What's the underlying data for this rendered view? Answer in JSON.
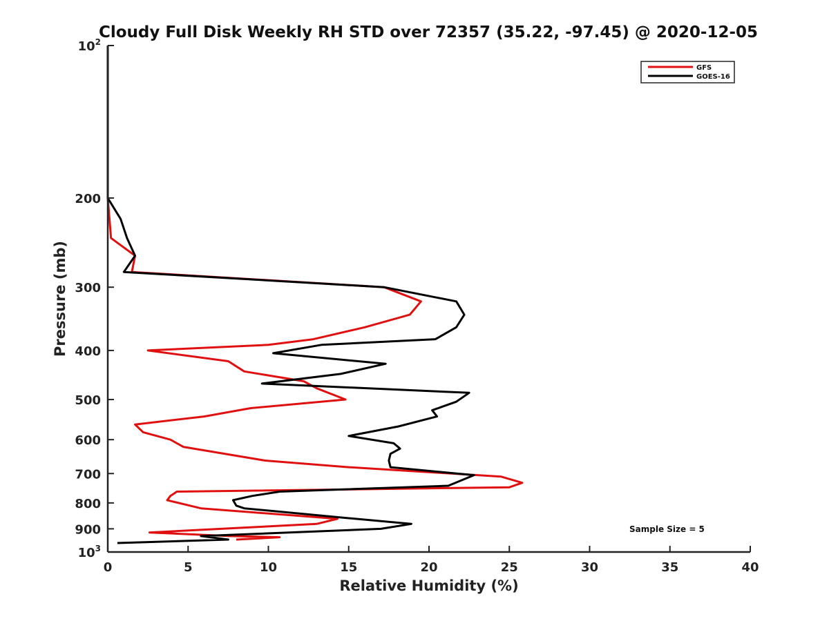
{
  "chart_data": {
    "type": "line",
    "title": "Cloudy Full Disk Weekly RH STD over 72357 (35.22, -97.45) @ 2020-12-05",
    "xlabel": "Relative Humidity (%)",
    "ylabel": "Pressure (mb)",
    "xlim": [
      0,
      40
    ],
    "ylim": [
      100,
      1000
    ],
    "yscale": "log",
    "y_reversed": true,
    "x_ticks": [
      "0",
      "5",
      "10",
      "15",
      "20",
      "25",
      "30",
      "35",
      "40"
    ],
    "y_ticks": [
      {
        "value": 100,
        "base": "10",
        "exp": "2"
      },
      {
        "value": 200,
        "label": "200"
      },
      {
        "value": 300,
        "label": "300"
      },
      {
        "value": 400,
        "label": "400"
      },
      {
        "value": 500,
        "label": "500"
      },
      {
        "value": 600,
        "label": "600"
      },
      {
        "value": 700,
        "label": "700"
      },
      {
        "value": 800,
        "label": "800"
      },
      {
        "value": 900,
        "label": "900"
      },
      {
        "value": 1000,
        "base": "10",
        "exp": "3"
      }
    ],
    "legend_position": "top-right",
    "annotation": "Sample Size = 5",
    "series": [
      {
        "name": "GFS",
        "color": "#e01010",
        "points": [
          [
            0,
            100
          ],
          [
            0,
            200
          ],
          [
            0.2,
            240
          ],
          [
            1.7,
            260
          ],
          [
            1.5,
            280
          ],
          [
            17.2,
            300
          ],
          [
            19.5,
            320
          ],
          [
            18.8,
            340
          ],
          [
            16.0,
            360
          ],
          [
            12.8,
            380
          ],
          [
            10.0,
            390
          ],
          [
            2.5,
            400
          ],
          [
            7.5,
            420
          ],
          [
            8.5,
            440
          ],
          [
            12.2,
            460
          ],
          [
            13.0,
            475
          ],
          [
            14.8,
            500
          ],
          [
            8.9,
            520
          ],
          [
            6.0,
            540
          ],
          [
            1.7,
            560
          ],
          [
            2.2,
            580
          ],
          [
            3.9,
            600
          ],
          [
            4.7,
            620
          ],
          [
            9.8,
            660
          ],
          [
            15.0,
            680
          ],
          [
            24.5,
            710
          ],
          [
            25.8,
            730
          ],
          [
            25.0,
            745
          ],
          [
            4.3,
            760
          ],
          [
            3.9,
            775
          ],
          [
            3.7,
            790
          ],
          [
            5.8,
            820
          ],
          [
            14.3,
            860
          ],
          [
            13.0,
            880
          ],
          [
            2.6,
            915
          ],
          [
            7.6,
            930
          ],
          [
            10.7,
            935
          ],
          [
            8.0,
            945
          ]
        ]
      },
      {
        "name": "GOES-16",
        "color": "#000000",
        "points": [
          [
            0,
            100
          ],
          [
            0,
            200
          ],
          [
            0.8,
            220
          ],
          [
            1.2,
            240
          ],
          [
            1.7,
            260
          ],
          [
            1.0,
            280
          ],
          [
            17.2,
            300
          ],
          [
            21.7,
            320
          ],
          [
            22.2,
            340
          ],
          [
            21.7,
            360
          ],
          [
            20.4,
            380
          ],
          [
            13.3,
            390
          ],
          [
            10.3,
            405
          ],
          [
            17.3,
            425
          ],
          [
            14.5,
            445
          ],
          [
            9.6,
            465
          ],
          [
            22.5,
            485
          ],
          [
            21.7,
            505
          ],
          [
            20.2,
            525
          ],
          [
            20.5,
            540
          ],
          [
            18.1,
            565
          ],
          [
            15.0,
            590
          ],
          [
            17.8,
            610
          ],
          [
            18.2,
            625
          ],
          [
            17.6,
            640
          ],
          [
            17.5,
            660
          ],
          [
            17.6,
            680
          ],
          [
            22.8,
            705
          ],
          [
            21.2,
            740
          ],
          [
            10.7,
            760
          ],
          [
            9.0,
            775
          ],
          [
            7.8,
            790
          ],
          [
            8.0,
            810
          ],
          [
            8.5,
            820
          ],
          [
            14.6,
            855
          ],
          [
            18.9,
            880
          ],
          [
            17.0,
            900
          ],
          [
            5.8,
            930
          ],
          [
            7.5,
            945
          ],
          [
            0.6,
            960
          ]
        ]
      }
    ]
  }
}
